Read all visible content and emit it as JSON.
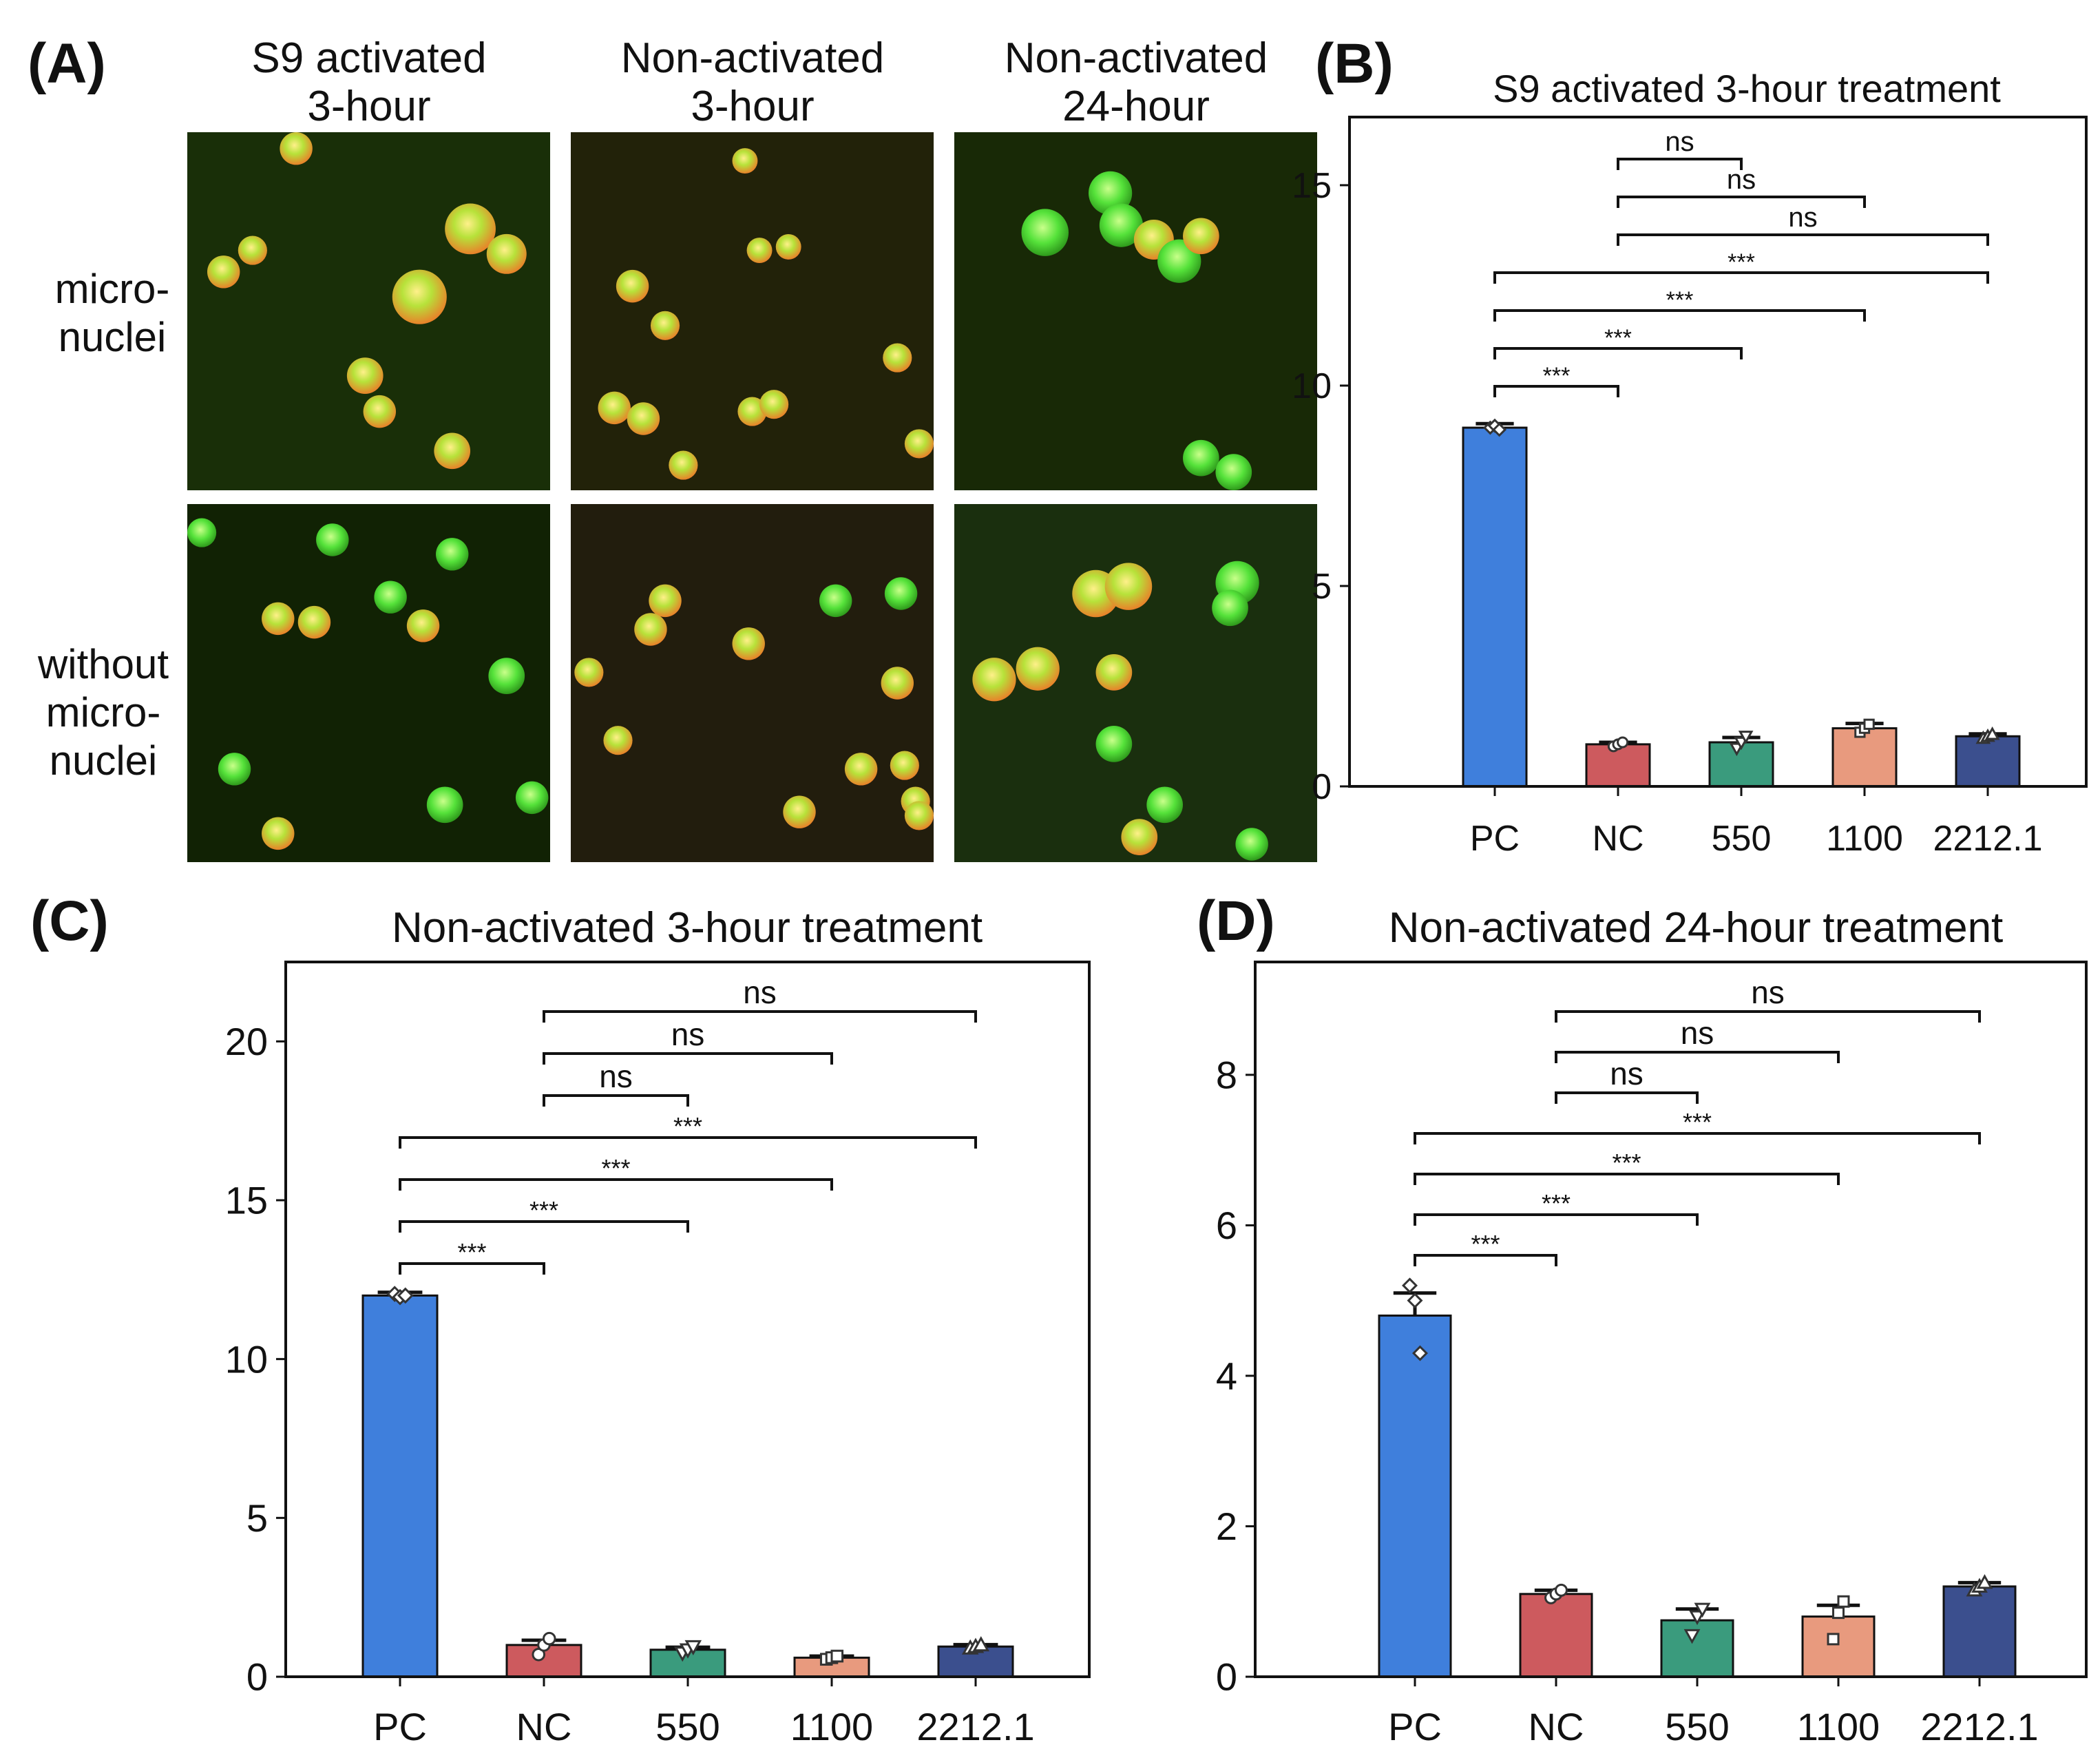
{
  "panel_labels": [
    "(A)",
    "(B)",
    "(C)",
    "(D)"
  ],
  "panel_a": {
    "column_headers": [
      [
        "S9 activated",
        "3-hour"
      ],
      [
        "Non-activated",
        "3-hour"
      ],
      [
        "Non-activated",
        "24-hour"
      ]
    ],
    "row_labels": [
      [
        "micro-",
        "nuclei"
      ],
      [
        "without",
        "micro-",
        "nuclei"
      ]
    ]
  },
  "colors": {
    "PC": "#3f7fdc",
    "NC": "#cd5a5e",
    "550": "#3a9b7d",
    "1100": "#e89a7e",
    "2212.1": "#3b4f8e",
    "axis": "#111111",
    "cell_green": "#55e23a",
    "cell_orange": "#e8822a",
    "background_image": "#1c2a08"
  },
  "chart_data": [
    {
      "id": "B",
      "type": "bar",
      "title": "S9 activated 3-hour treatment",
      "categories": [
        "PC",
        "NC",
        "550",
        "1100",
        "2212.1"
      ],
      "values": [
        8.95,
        1.05,
        1.1,
        1.45,
        1.25
      ],
      "errors": [
        0.1,
        0.05,
        0.12,
        0.12,
        0.06
      ],
      "points": [
        [
          8.95,
          9.0,
          8.9
        ],
        [
          1.0,
          1.05,
          1.1
        ],
        [
          0.95,
          1.1,
          1.25
        ],
        [
          1.35,
          1.45,
          1.55
        ],
        [
          1.2,
          1.25,
          1.3
        ]
      ],
      "markers": [
        "diamond",
        "circle",
        "triangle-down",
        "square",
        "triangle-up"
      ],
      "ylim": [
        0,
        16.7
      ],
      "yticks": [
        0,
        5,
        10,
        15
      ],
      "comparisons": [
        {
          "from": 1,
          "to": 2,
          "label": "ns"
        },
        {
          "from": 1,
          "to": 3,
          "label": "ns"
        },
        {
          "from": 1,
          "to": 4,
          "label": "ns"
        },
        {
          "from": 0,
          "to": 4,
          "label": "***"
        },
        {
          "from": 0,
          "to": 3,
          "label": "***"
        },
        {
          "from": 0,
          "to": 2,
          "label": "***"
        },
        {
          "from": 0,
          "to": 1,
          "label": "***"
        }
      ]
    },
    {
      "id": "C",
      "type": "bar",
      "title": "Non-activated 3-hour treatment",
      "categories": [
        "PC",
        "NC",
        "550",
        "1100",
        "2212.1"
      ],
      "values": [
        12.0,
        1.0,
        0.85,
        0.6,
        0.95
      ],
      "errors": [
        0.1,
        0.15,
        0.08,
        0.05,
        0.06
      ],
      "points": [
        [
          12.05,
          11.95,
          12.0
        ],
        [
          0.7,
          1.0,
          1.2
        ],
        [
          0.75,
          0.85,
          0.95
        ],
        [
          0.55,
          0.6,
          0.65
        ],
        [
          0.9,
          0.95,
          1.0
        ]
      ],
      "markers": [
        "diamond",
        "circle",
        "triangle-down",
        "square",
        "triangle-up"
      ],
      "ylim": [
        0,
        22.5
      ],
      "yticks": [
        0,
        5,
        10,
        15,
        20
      ],
      "comparisons": [
        {
          "from": 1,
          "to": 4,
          "label": "ns"
        },
        {
          "from": 1,
          "to": 3,
          "label": "ns"
        },
        {
          "from": 1,
          "to": 2,
          "label": "ns"
        },
        {
          "from": 0,
          "to": 4,
          "label": "***"
        },
        {
          "from": 0,
          "to": 3,
          "label": "***"
        },
        {
          "from": 0,
          "to": 2,
          "label": "***"
        },
        {
          "from": 0,
          "to": 1,
          "label": "***"
        }
      ]
    },
    {
      "id": "D",
      "type": "bar",
      "title": "Non-activated 24-hour treatment",
      "categories": [
        "PC",
        "NC",
        "550",
        "1100",
        "2212.1"
      ],
      "values": [
        4.8,
        1.1,
        0.75,
        0.8,
        1.2
      ],
      "errors": [
        0.3,
        0.05,
        0.15,
        0.15,
        0.05
      ],
      "points": [
        [
          5.2,
          5.0,
          4.3
        ],
        [
          1.05,
          1.1,
          1.15
        ],
        [
          0.55,
          0.8,
          0.9
        ],
        [
          0.5,
          0.85,
          1.0
        ],
        [
          1.15,
          1.2,
          1.25
        ]
      ],
      "markers": [
        "diamond",
        "circle",
        "triangle-down",
        "square",
        "triangle-up"
      ],
      "ylim": [
        0,
        9.5
      ],
      "yticks": [
        0,
        2,
        4,
        6,
        8
      ],
      "comparisons": [
        {
          "from": 1,
          "to": 4,
          "label": "ns"
        },
        {
          "from": 1,
          "to": 3,
          "label": "ns"
        },
        {
          "from": 1,
          "to": 2,
          "label": "ns"
        },
        {
          "from": 0,
          "to": 4,
          "label": "***"
        },
        {
          "from": 0,
          "to": 3,
          "label": "***"
        },
        {
          "from": 0,
          "to": 2,
          "label": "***"
        },
        {
          "from": 0,
          "to": 1,
          "label": "***"
        }
      ]
    }
  ]
}
